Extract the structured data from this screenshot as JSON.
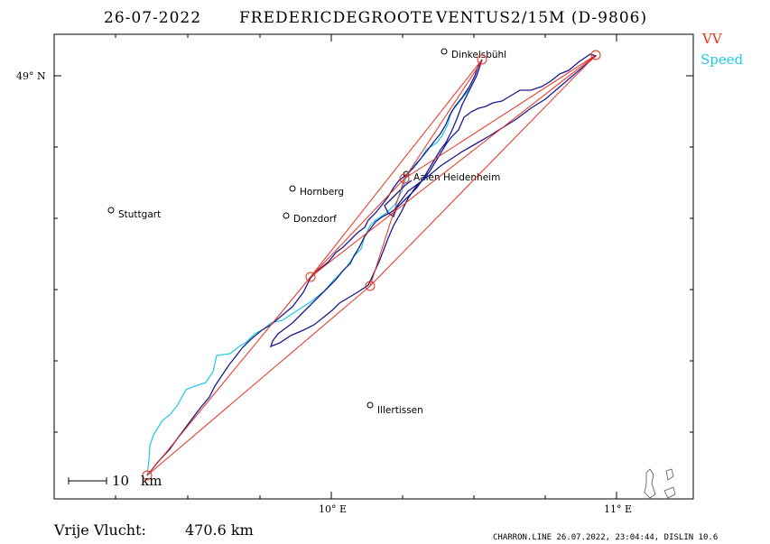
{
  "header": {
    "date": "26-07-2022",
    "pilot": "FREDERICDEGROOTE",
    "glider": "VENTUS2/15M (D-9806)"
  },
  "legend": {
    "vv_label": "VV",
    "vv_color": "#e8301f",
    "speed_label": "Speed",
    "speed_color": "#1ec8e8"
  },
  "track_color": "#1a1a8c",
  "axes": {
    "lat_label": "49° N",
    "lon_labels": [
      "10° E",
      "11° E"
    ]
  },
  "cities": [
    {
      "name": "Dinkelsbühl"
    },
    {
      "name": "Aalen Heidenheim"
    },
    {
      "name": "Hornberg"
    },
    {
      "name": "Stuttgart"
    },
    {
      "name": "Donzdorf"
    },
    {
      "name": "Illertissen"
    }
  ],
  "scale": {
    "value": "10",
    "unit": "km"
  },
  "footer": {
    "distance_label": "Vrije Vlucht:",
    "distance_value": "470.6 km",
    "credits": "CHARRON.LINE 26.07.2022, 23:04:44, DISLIN 10.6"
  }
}
